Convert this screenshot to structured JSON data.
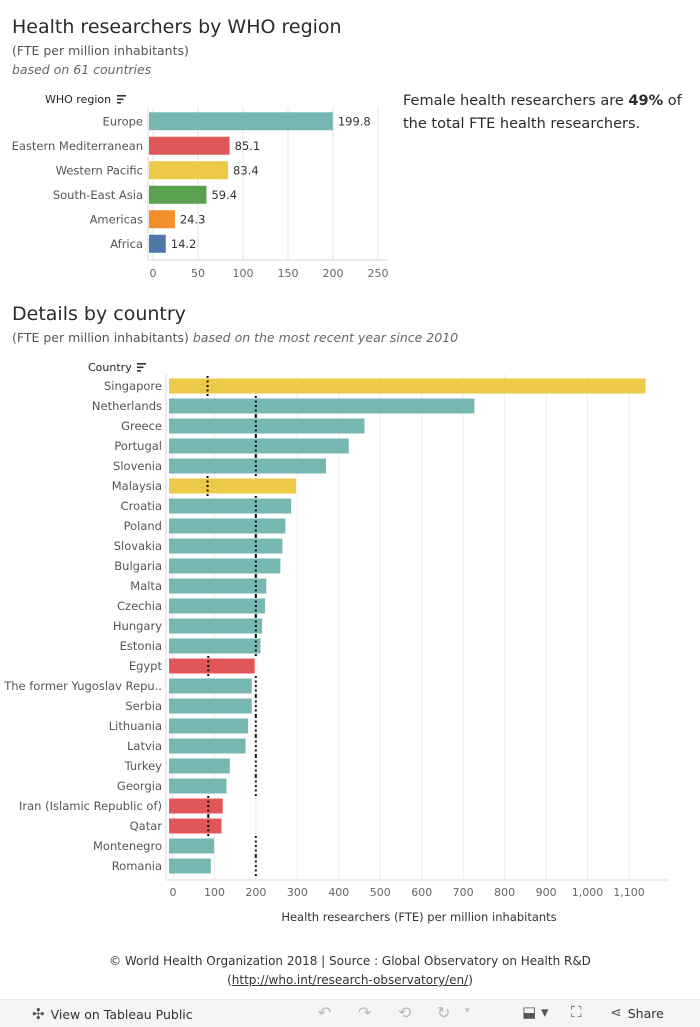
{
  "header": {
    "title": "Health researchers by WHO region",
    "subtitle": "(FTE per million inhabitants)",
    "note": "based on 61 countries"
  },
  "callout": {
    "before": "Female health researchers are ",
    "value": "49%",
    "after": " of the total FTE health researchers."
  },
  "details": {
    "title": "Details by country",
    "subtitle": "(FTE per million inhabitants)",
    "note": "based on the most recent year since 2010"
  },
  "colors": {
    "Europe": "#76b7b2",
    "Eastern Mediterranean": "#e15759",
    "Western Pacific": "#edc948",
    "South-East Asia": "#59a14f",
    "Americas": "#f28e2b",
    "Africa": "#4e79a7"
  },
  "chart_data": [
    {
      "type": "bar",
      "orientation": "horizontal",
      "y_header": "WHO region",
      "categories": [
        "Europe",
        "Eastern Mediterranean",
        "Western Pacific",
        "South-East Asia",
        "Americas",
        "Africa"
      ],
      "values": [
        199.8,
        85.1,
        83.4,
        59.4,
        24.3,
        14.2
      ],
      "value_labels": [
        "199.8",
        "85.1",
        "83.4",
        "59.4",
        "24.3",
        "14.2"
      ],
      "xlim": [
        0,
        250
      ],
      "xticks": [
        0,
        50,
        100,
        150,
        200,
        250
      ],
      "grid": true
    },
    {
      "type": "bar",
      "orientation": "horizontal",
      "y_header": "Country",
      "xlabel": "Health researchers (FTE) per million inhabitants",
      "categories": [
        "Singapore",
        "Netherlands",
        "Greece",
        "Portugal",
        "Slovenia",
        "Malaysia",
        "Croatia",
        "Poland",
        "Slovakia",
        "Bulgaria",
        "Malta",
        "Czechia",
        "Hungary",
        "Estonia",
        "Egypt",
        "The former Yugoslav Repu..",
        "Serbia",
        "Lithuania",
        "Latvia",
        "Turkey",
        "Georgia",
        "Iran (Islamic Republic of)",
        "Qatar",
        "Montenegro",
        "Romania"
      ],
      "regions": [
        "Western Pacific",
        "Europe",
        "Europe",
        "Europe",
        "Europe",
        "Western Pacific",
        "Europe",
        "Europe",
        "Europe",
        "Europe",
        "Europe",
        "Europe",
        "Europe",
        "Europe",
        "Eastern Mediterranean",
        "Europe",
        "Europe",
        "Europe",
        "Europe",
        "Europe",
        "Europe",
        "Eastern Mediterranean",
        "Eastern Mediterranean",
        "Europe",
        "Europe"
      ],
      "values": [
        1140,
        727,
        462,
        424,
        369,
        297,
        285,
        271,
        264,
        259,
        225,
        222,
        215,
        211,
        197,
        190,
        190,
        181,
        175,
        137,
        129,
        120,
        117,
        99,
        91
      ],
      "reference_line": {
        "Europe": 199.8,
        "Eastern Mediterranean": 85.1,
        "Western Pacific": 83.4
      },
      "xlim": [
        0,
        1150
      ],
      "xticks": [
        0,
        100,
        200,
        300,
        400,
        500,
        600,
        700,
        800,
        900,
        1000,
        1100
      ],
      "xtick_labels": [
        "0",
        "100",
        "200",
        "300",
        "400",
        "500",
        "600",
        "700",
        "800",
        "900",
        "1,000",
        "1,100"
      ],
      "grid": true
    }
  ],
  "footer": {
    "line1": "© World Health Organization 2018 | Source : Global Observatory on Health R&D",
    "link": "http://who.int/research-observatory/en/",
    "paren_open": "(",
    "paren_close": ")"
  },
  "toolbar": {
    "view_label": "View on Tableau Public",
    "share_label": "Share",
    "icons": [
      "tableau-icon",
      "undo-icon",
      "redo-icon",
      "revert-icon",
      "refresh-icon",
      "pause-icon",
      "download-icon",
      "fullscreen-icon",
      "share-icon"
    ]
  }
}
